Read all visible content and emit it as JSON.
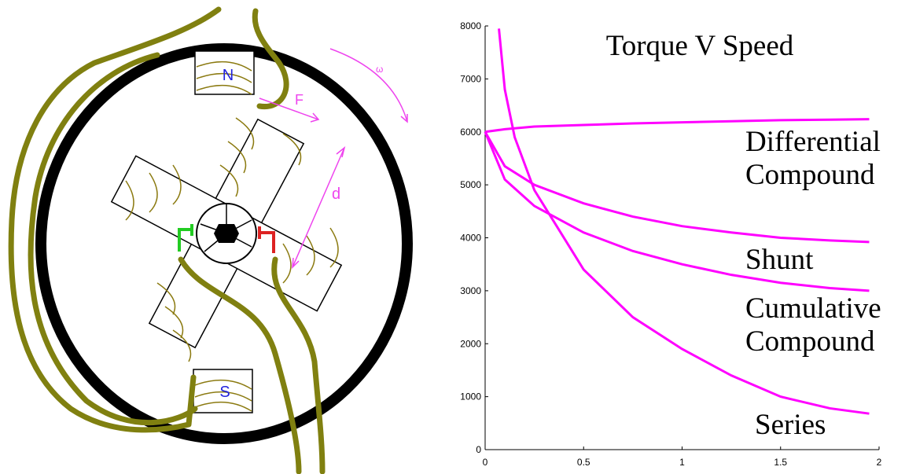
{
  "diagram": {
    "labels": {
      "north": "N",
      "south": "S",
      "force": "F",
      "distance": "d",
      "omega": "ω"
    }
  },
  "chart_data": {
    "type": "line",
    "title": "Torque V Speed",
    "xlim": [
      0,
      2
    ],
    "xticks": [
      0,
      0.5,
      1,
      1.5,
      2
    ],
    "ylim": [
      0,
      8000
    ],
    "yticks": [
      0,
      1000,
      2000,
      3000,
      4000,
      5000,
      6000,
      7000,
      8000
    ],
    "series": [
      {
        "name": "Differential Compound",
        "color": "#ff00ff",
        "x": [
          0,
          0.1,
          0.25,
          0.5,
          0.75,
          1,
          1.25,
          1.5,
          1.75,
          1.95
        ],
        "values": [
          6000,
          6050,
          6100,
          6130,
          6160,
          6180,
          6200,
          6220,
          6230,
          6240
        ]
      },
      {
        "name": "Shunt",
        "color": "#ff00ff",
        "x": [
          0,
          0.1,
          0.25,
          0.5,
          0.75,
          1,
          1.25,
          1.5,
          1.75,
          1.95
        ],
        "values": [
          6000,
          5350,
          5000,
          4650,
          4400,
          4220,
          4100,
          4000,
          3950,
          3920
        ]
      },
      {
        "name": "Cumulative Compound",
        "color": "#ff00ff",
        "x": [
          0,
          0.1,
          0.25,
          0.5,
          0.75,
          1,
          1.25,
          1.5,
          1.75,
          1.95
        ],
        "values": [
          6000,
          5100,
          4600,
          4100,
          3750,
          3500,
          3300,
          3150,
          3050,
          3000
        ]
      },
      {
        "name": "Series",
        "color": "#ff00ff",
        "x": [
          0.07,
          0.1,
          0.15,
          0.25,
          0.5,
          0.75,
          1,
          1.25,
          1.5,
          1.75,
          1.95
        ],
        "values": [
          7950,
          6800,
          5900,
          4900,
          3400,
          2500,
          1900,
          1400,
          1000,
          780,
          680
        ]
      }
    ]
  }
}
